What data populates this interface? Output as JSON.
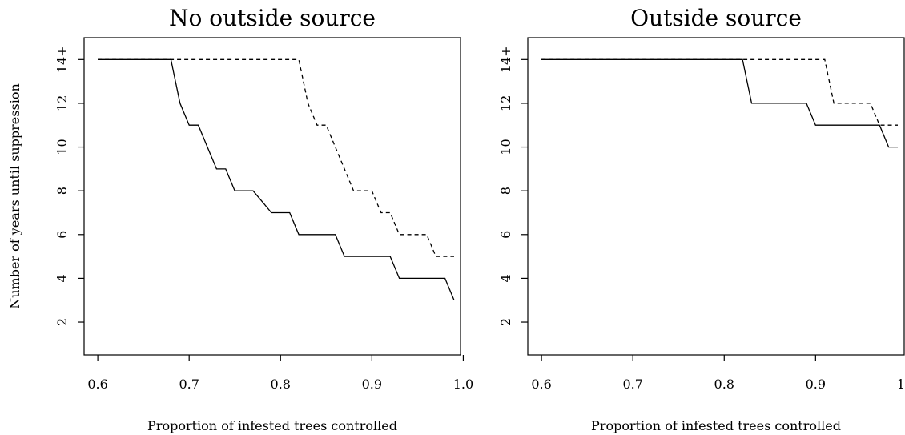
{
  "figure": {
    "ylabel": "Number of years until suppression"
  },
  "chart_data": [
    {
      "type": "line",
      "title": "No outside source",
      "xlabel": "Proportion of infested trees controlled",
      "ylabel": "Number of years until suppression",
      "xlim": [
        0.585,
        0.997
      ],
      "ylim": [
        0.5,
        15
      ],
      "x_ticks": [
        0.6,
        0.7,
        0.8,
        0.9,
        1.0
      ],
      "x_tick_labels": [
        "0.6",
        "0.7",
        "0.8",
        "0.9",
        "1.0"
      ],
      "y_ticks": [
        2,
        4,
        6,
        8,
        10,
        12,
        14
      ],
      "y_tick_labels": [
        "2",
        "4",
        "6",
        "8",
        "10",
        "12",
        "14+"
      ],
      "grid": false,
      "series": [
        {
          "style": "solid",
          "x": [
            0.6,
            0.61,
            0.62,
            0.63,
            0.64,
            0.65,
            0.66,
            0.67,
            0.68,
            0.69,
            0.7,
            0.71,
            0.72,
            0.73,
            0.74,
            0.75,
            0.76,
            0.77,
            0.78,
            0.79,
            0.8,
            0.81,
            0.82,
            0.83,
            0.84,
            0.85,
            0.86,
            0.87,
            0.88,
            0.89,
            0.9,
            0.91,
            0.92,
            0.93,
            0.94,
            0.95,
            0.96,
            0.97,
            0.98,
            0.99
          ],
          "values": [
            14,
            14,
            14,
            14,
            14,
            14,
            14,
            14,
            14,
            12,
            11,
            11,
            10,
            9,
            9,
            8,
            8,
            8,
            7.5,
            7,
            7,
            7,
            6,
            6,
            6,
            6,
            6,
            5,
            5,
            5,
            5,
            5,
            5,
            4,
            4,
            4,
            4,
            4,
            4,
            3
          ]
        },
        {
          "style": "dashed",
          "x": [
            0.6,
            0.61,
            0.62,
            0.63,
            0.64,
            0.65,
            0.66,
            0.67,
            0.68,
            0.69,
            0.7,
            0.71,
            0.72,
            0.73,
            0.74,
            0.75,
            0.76,
            0.77,
            0.78,
            0.79,
            0.8,
            0.81,
            0.82,
            0.83,
            0.84,
            0.85,
            0.86,
            0.87,
            0.88,
            0.89,
            0.9,
            0.91,
            0.92,
            0.93,
            0.94,
            0.95,
            0.96,
            0.97,
            0.98,
            0.99
          ],
          "values": [
            14,
            14,
            14,
            14,
            14,
            14,
            14,
            14,
            14,
            14,
            14,
            14,
            14,
            14,
            14,
            14,
            14,
            14,
            14,
            14,
            14,
            14,
            14,
            12,
            11,
            11,
            10,
            9,
            8,
            8,
            8,
            7,
            7,
            6,
            6,
            6,
            6,
            5,
            5,
            5
          ]
        }
      ]
    },
    {
      "type": "line",
      "title": "Outside source",
      "xlabel": "Proportion of infested trees controlled",
      "xlim": [
        0.585,
        0.997
      ],
      "ylim": [
        0.5,
        15
      ],
      "x_ticks": [
        0.6,
        0.7,
        0.8,
        0.9,
        1.0
      ],
      "x_tick_labels": [
        "0.6",
        "0.7",
        "0.8",
        "0.9",
        "1.0"
      ],
      "y_ticks": [
        2,
        4,
        6,
        8,
        10,
        12,
        14
      ],
      "y_tick_labels": [
        "2",
        "4",
        "6",
        "8",
        "10",
        "12",
        "14+"
      ],
      "grid": false,
      "series": [
        {
          "style": "solid",
          "x": [
            0.6,
            0.61,
            0.62,
            0.63,
            0.64,
            0.65,
            0.66,
            0.67,
            0.68,
            0.69,
            0.7,
            0.71,
            0.72,
            0.73,
            0.74,
            0.75,
            0.76,
            0.77,
            0.78,
            0.79,
            0.8,
            0.81,
            0.82,
            0.83,
            0.84,
            0.85,
            0.86,
            0.87,
            0.88,
            0.89,
            0.9,
            0.91,
            0.92,
            0.93,
            0.94,
            0.95,
            0.96,
            0.97,
            0.98,
            0.99
          ],
          "values": [
            14,
            14,
            14,
            14,
            14,
            14,
            14,
            14,
            14,
            14,
            14,
            14,
            14,
            14,
            14,
            14,
            14,
            14,
            14,
            14,
            14,
            14,
            14,
            12,
            12,
            12,
            12,
            12,
            12,
            12,
            11,
            11,
            11,
            11,
            11,
            11,
            11,
            11,
            10,
            10
          ]
        },
        {
          "style": "dashed",
          "x": [
            0.6,
            0.61,
            0.62,
            0.63,
            0.64,
            0.65,
            0.66,
            0.67,
            0.68,
            0.69,
            0.7,
            0.71,
            0.72,
            0.73,
            0.74,
            0.75,
            0.76,
            0.77,
            0.78,
            0.79,
            0.8,
            0.81,
            0.82,
            0.83,
            0.84,
            0.85,
            0.86,
            0.87,
            0.88,
            0.89,
            0.9,
            0.91,
            0.92,
            0.93,
            0.94,
            0.95,
            0.96,
            0.97,
            0.98,
            0.99
          ],
          "values": [
            14,
            14,
            14,
            14,
            14,
            14,
            14,
            14,
            14,
            14,
            14,
            14,
            14,
            14,
            14,
            14,
            14,
            14,
            14,
            14,
            14,
            14,
            14,
            14,
            14,
            14,
            14,
            14,
            14,
            14,
            14,
            14,
            12,
            12,
            12,
            12,
            12,
            11,
            11,
            11
          ]
        }
      ]
    }
  ]
}
